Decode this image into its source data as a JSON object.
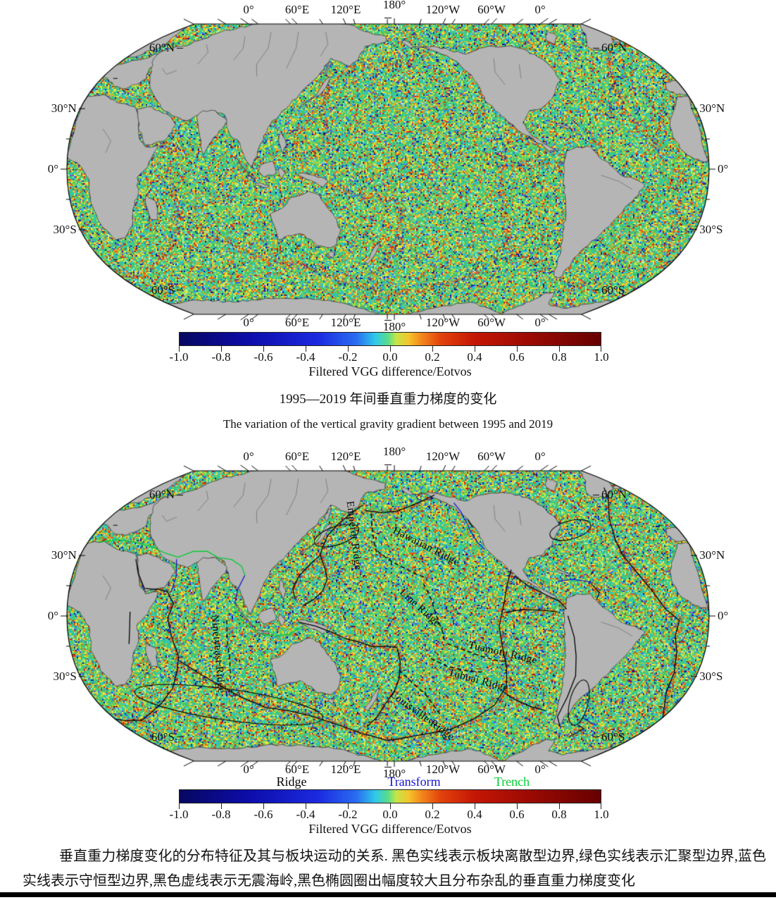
{
  "figure_top": {
    "lon_labels": [
      "0°",
      "60°E",
      "120°E",
      "180°",
      "120°W",
      "60°W",
      "0°"
    ],
    "lat_labels": [
      "60°N",
      "30°N",
      "0°",
      "30°S",
      "60°S"
    ],
    "colorbar": {
      "ticks": [
        "-1.0",
        "-0.8",
        "-0.6",
        "-0.4",
        "-0.2",
        "0.0",
        "0.2",
        "0.4",
        "0.6",
        "0.8",
        "1.0"
      ],
      "label": "Filtered VGG difference/Eotvos"
    },
    "caption_zh": "1995—2019 年间垂直重力梯度的变化",
    "caption_en": "The variation of the vertical gravity gradient between 1995 and 2019"
  },
  "figure_bottom": {
    "lon_labels": [
      "0°",
      "60°E",
      "120°E",
      "180°",
      "120°W",
      "60°W",
      "0°"
    ],
    "lat_labels": [
      "60°N",
      "30°N",
      "0°",
      "30°S",
      "60°S"
    ],
    "ridge_labels": [
      "Emperor Ridge",
      "Hawaiian Ridge",
      "Line Ridge",
      "Tuamotu Ridge",
      "Tubuai Ridge",
      "Louisville Ridge",
      "Ninetyeast Ridge"
    ],
    "legend": [
      {
        "label": "Ridge",
        "color": "#000000"
      },
      {
        "label": "Transform",
        "color": "#1414cc"
      },
      {
        "label": "Trench",
        "color": "#00cc33"
      }
    ],
    "colorbar": {
      "ticks": [
        "-1.0",
        "-0.8",
        "-0.6",
        "-0.4",
        "-0.2",
        "0.0",
        "0.2",
        "0.4",
        "0.6",
        "0.8",
        "1.0"
      ],
      "label": "Filtered VGG difference/Eotvos"
    },
    "caption": "垂直重力梯度变化的分布特征及其与板块运动的关系. 黑色实线表示板块离散型边界,绿色实线表示汇聚型边界,蓝色实线表示守恒型边界,黑色虚线表示无震海岭,黑色椭圆圈出幅度较大且分布杂乱的垂直重力梯度变化"
  },
  "colors": {
    "land": "#b5b5b5",
    "coastline": "#3d3d3d",
    "frame": "#000000",
    "transform_blue": "#1414cc",
    "trench_green": "#00cc33",
    "colorbar_stops": [
      [
        0.0,
        "#070761"
      ],
      [
        0.16,
        "#0c0ca8"
      ],
      [
        0.33,
        "#1b2ae0"
      ],
      [
        0.42,
        "#2a6cf2"
      ],
      [
        0.465,
        "#2fc9e8"
      ],
      [
        0.495,
        "#59dc8a"
      ],
      [
        0.515,
        "#c6e645"
      ],
      [
        0.545,
        "#f5c32c"
      ],
      [
        0.575,
        "#f2861c"
      ],
      [
        0.62,
        "#e2430c"
      ],
      [
        0.7,
        "#c41605"
      ],
      [
        0.83,
        "#9c0a03"
      ],
      [
        1.0,
        "#660000"
      ]
    ],
    "speckle_palette": [
      [
        "#3ec46e",
        0.24
      ],
      [
        "#37cf9b",
        0.1
      ],
      [
        "#2bc3cf",
        0.12
      ],
      [
        "#83d44a",
        0.13
      ],
      [
        "#e6e53a",
        0.13
      ],
      [
        "#f2a429",
        0.07
      ],
      [
        "#ea5b17",
        0.05
      ],
      [
        "#cc2505",
        0.04
      ],
      [
        "#3a5ae8",
        0.045
      ],
      [
        "#16169a",
        0.035
      ],
      [
        "#a6ecc8",
        0.04
      ]
    ]
  }
}
